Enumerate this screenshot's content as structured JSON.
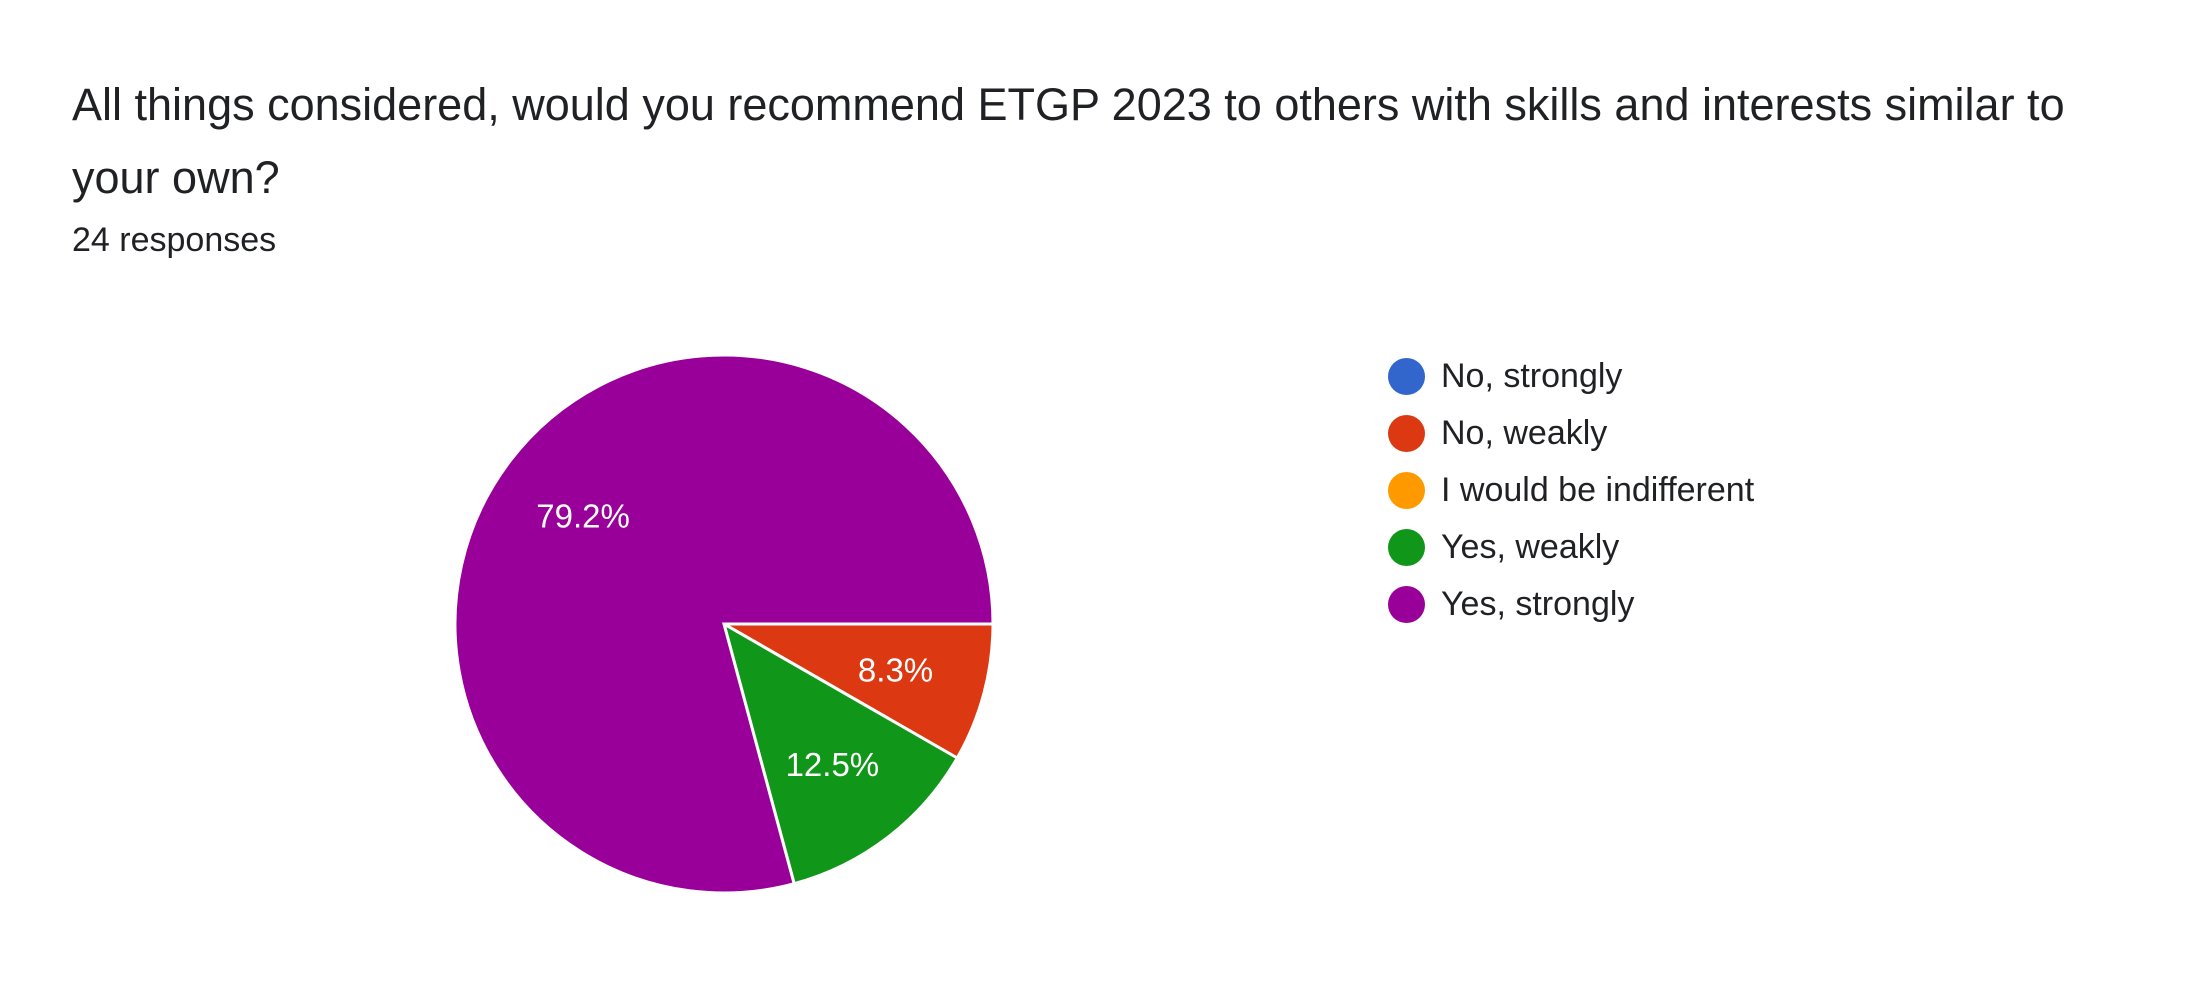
{
  "question": {
    "title": "All things considered, would you recommend ETGP 2023 to others with skills and interests similar to your own?",
    "responses_label": "24 responses"
  },
  "chart_data": {
    "type": "pie",
    "categories": [
      "No, strongly",
      "No, weakly",
      "I would be indifferent",
      "Yes, weakly",
      "Yes, strongly"
    ],
    "values": [
      0,
      8.3,
      0,
      12.5,
      79.2
    ],
    "value_labels": [
      "",
      "8.3%",
      "",
      "12.5%",
      "79.2%"
    ],
    "colors": [
      "#3366cc",
      "#dc3912",
      "#ff9900",
      "#109618",
      "#990099"
    ],
    "legend_position": "right",
    "start_angle": "3 o'clock",
    "direction": "clockwise"
  }
}
